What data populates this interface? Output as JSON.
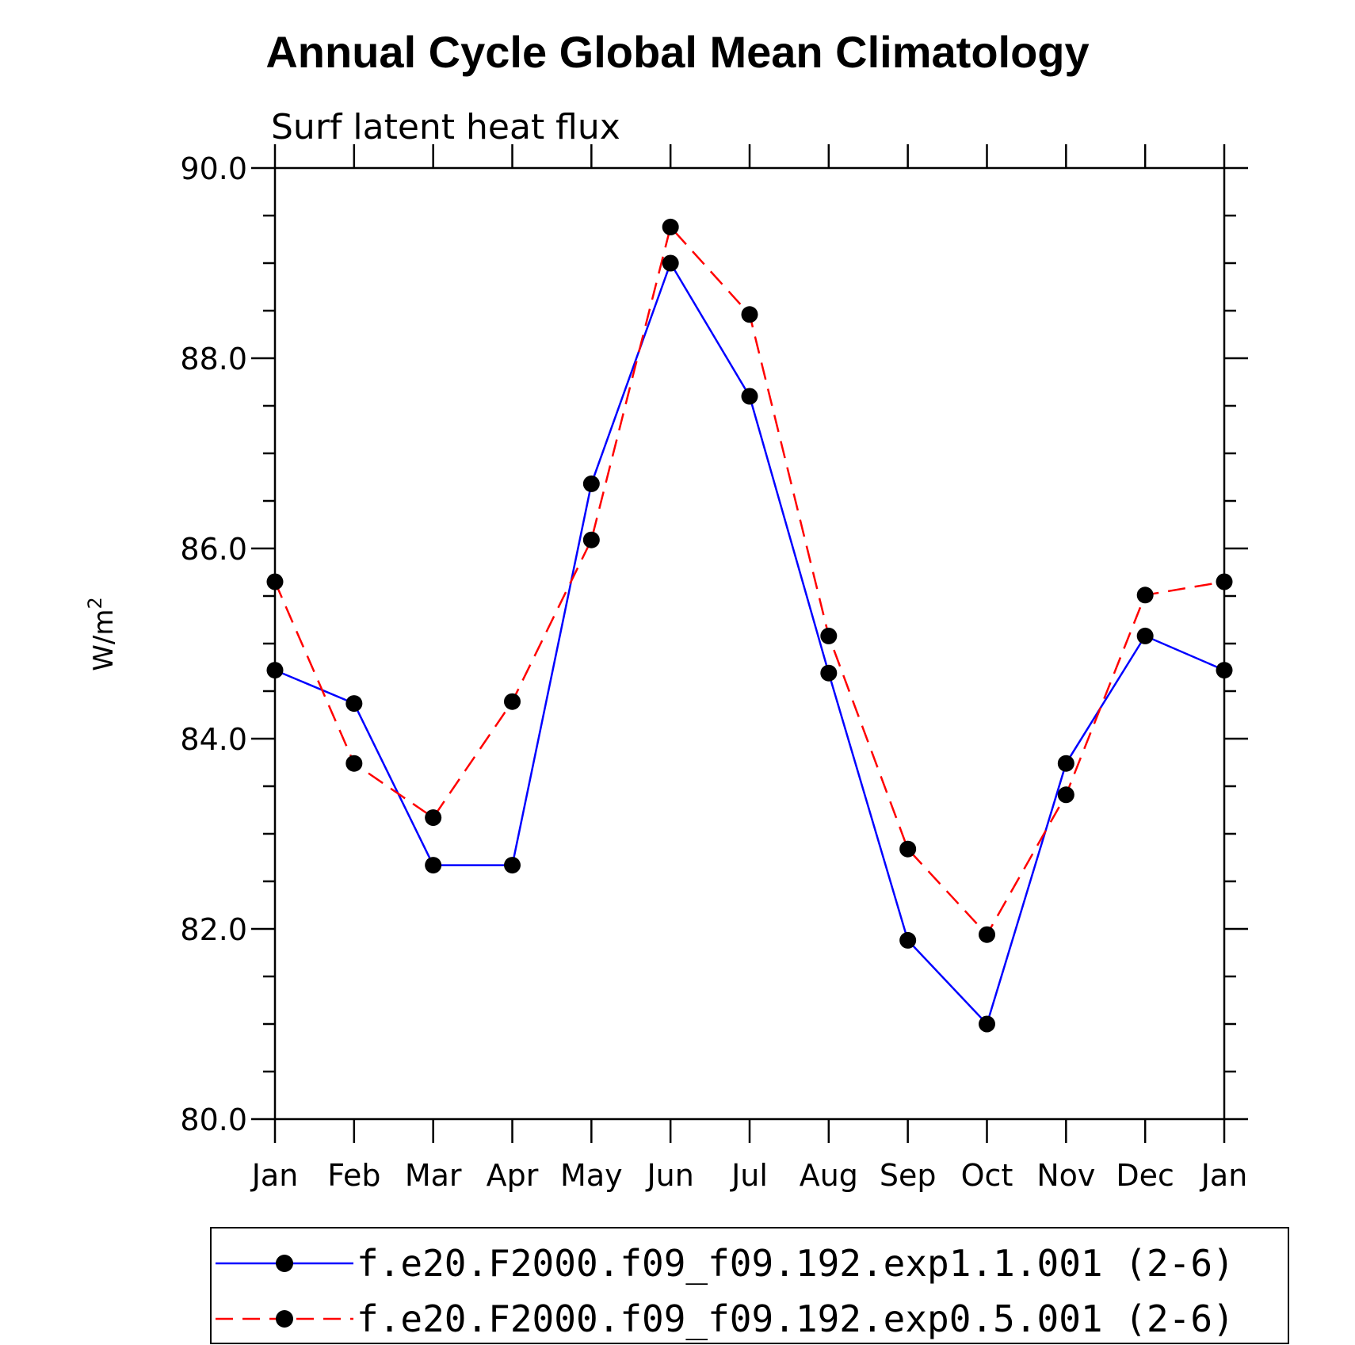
{
  "chart_data": {
    "type": "line",
    "title": "Annual Cycle Global Mean Climatology",
    "subtitle": "Surf latent heat flux",
    "ylabel": "W/m",
    "ylabel_superscript": "2",
    "ylim": [
      80.0,
      90.0
    ],
    "yticks": [
      "80.0",
      "82.0",
      "84.0",
      "86.0",
      "88.0",
      "90.0"
    ],
    "categories": [
      "Jan",
      "Feb",
      "Mar",
      "Apr",
      "May",
      "Jun",
      "Jul",
      "Aug",
      "Sep",
      "Oct",
      "Nov",
      "Dec",
      "Jan"
    ],
    "grid": false,
    "legend_position": "bottom",
    "series": [
      {
        "name": "f.e20.F2000.f09_f09.192.exp1.1.001 (2-6)",
        "color": "#0000ff",
        "dash": "solid",
        "marker": "filled-circle",
        "values": [
          84.72,
          84.37,
          82.67,
          82.67,
          86.68,
          89.0,
          87.6,
          84.69,
          81.88,
          81.0,
          83.74,
          85.08,
          84.72
        ]
      },
      {
        "name": "f.e20.F2000.f09_f09.192.exp0.5.001 (2-6)",
        "color": "#ff0000",
        "dash": "dashed",
        "marker": "filled-circle",
        "values": [
          85.65,
          83.74,
          83.17,
          84.39,
          86.09,
          89.38,
          88.46,
          85.08,
          82.84,
          81.94,
          83.41,
          85.51,
          85.65
        ]
      }
    ]
  }
}
